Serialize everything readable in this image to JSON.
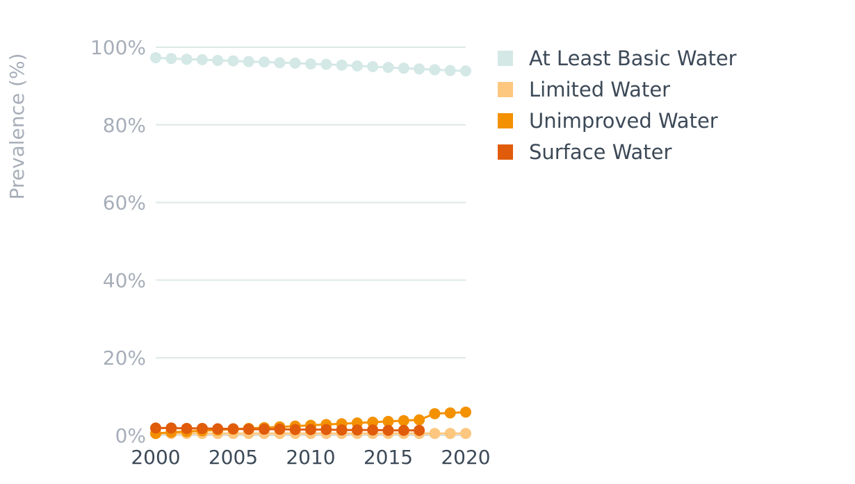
{
  "chart_data": {
    "type": "line",
    "ylabel": "Prevalence (%)",
    "xlabel": "",
    "ylim": [
      0,
      100
    ],
    "xlim": [
      2000,
      2020
    ],
    "y_ticks": [
      "0%",
      "20%",
      "40%",
      "60%",
      "80%",
      "100%"
    ],
    "y_tick_values": [
      0,
      20,
      40,
      60,
      80,
      100
    ],
    "x_ticks": [
      "2000",
      "2005",
      "2010",
      "2015",
      "2020"
    ],
    "x_tick_values": [
      2000,
      2005,
      2010,
      2015,
      2020
    ],
    "grid": "horizontal",
    "legend_position": "right",
    "series": [
      {
        "name": "At Least Basic Water",
        "color": "#d4e8e6",
        "x": [
          2000,
          2001,
          2002,
          2003,
          2004,
          2005,
          2006,
          2007,
          2008,
          2009,
          2010,
          2011,
          2012,
          2013,
          2014,
          2015,
          2016,
          2017,
          2018,
          2019,
          2020
        ],
        "values": [
          97.3,
          97.1,
          96.9,
          96.8,
          96.6,
          96.5,
          96.3,
          96.2,
          96.0,
          95.9,
          95.7,
          95.6,
          95.4,
          95.2,
          95.0,
          94.8,
          94.6,
          94.4,
          94.2,
          94.0,
          93.9
        ]
      },
      {
        "name": "Limited Water",
        "color": "#fdc77f",
        "x": [
          2000,
          2001,
          2002,
          2003,
          2004,
          2005,
          2006,
          2007,
          2008,
          2009,
          2010,
          2011,
          2012,
          2013,
          2014,
          2015,
          2016,
          2017,
          2018,
          2019,
          2020
        ],
        "values": [
          0.5,
          0.5,
          0.5,
          0.5,
          0.5,
          0.5,
          0.5,
          0.5,
          0.5,
          0.5,
          0.5,
          0.5,
          0.5,
          0.5,
          0.5,
          0.5,
          0.5,
          0.5,
          0.5,
          0.5,
          0.5
        ]
      },
      {
        "name": "Unimproved Water",
        "color": "#f39100",
        "x": [
          2000,
          2001,
          2002,
          2003,
          2004,
          2005,
          2006,
          2007,
          2008,
          2009,
          2010,
          2011,
          2012,
          2013,
          2014,
          2015,
          2016,
          2017,
          2018,
          2019,
          2020
        ],
        "values": [
          0.5,
          0.8,
          1.0,
          1.2,
          1.4,
          1.6,
          1.8,
          2.0,
          2.2,
          2.4,
          2.6,
          2.8,
          3.0,
          3.2,
          3.4,
          3.6,
          3.8,
          4.0,
          5.6,
          5.8,
          6.0
        ]
      },
      {
        "name": "Surface Water",
        "color": "#e05c0b",
        "x": [
          2000,
          2001,
          2002,
          2003,
          2004,
          2005,
          2006,
          2007,
          2008,
          2009,
          2010,
          2011,
          2012,
          2013,
          2014,
          2015,
          2016,
          2017
        ],
        "values": [
          1.9,
          1.9,
          1.8,
          1.8,
          1.7,
          1.7,
          1.6,
          1.6,
          1.6,
          1.5,
          1.5,
          1.5,
          1.4,
          1.4,
          1.4,
          1.3,
          1.3,
          1.3
        ]
      }
    ]
  }
}
